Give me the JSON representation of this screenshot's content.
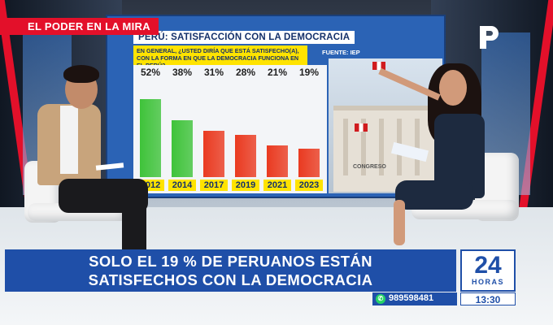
{
  "program_tag": "EL PODER EN LA MIRA",
  "screen": {
    "title": "PERÚ: SATISFACCIÓN CON LA DEMOCRACIA",
    "question": "EN GENERAL, ¿USTED DIRÍA QUE ESTÁ SATISFECHO(A), CON LA FORMA EN QUE LA DEMOCRACIA FUNCIONA EN EL PERÚ?",
    "source": "FUENTE: IEP",
    "building_label": "CONGRESO",
    "colors": {
      "green": "#3fc33a",
      "red": "#ea3a20",
      "year_bg": "#ffe300"
    }
  },
  "chart_data": {
    "type": "bar",
    "title": "PERÚ: SATISFACCIÓN CON LA DEMOCRACIA",
    "categories": [
      "2012",
      "2014",
      "2017",
      "2019",
      "2021",
      "2023"
    ],
    "values": [
      52,
      38,
      31,
      28,
      21,
      19
    ],
    "value_labels": [
      "52%",
      "38%",
      "31%",
      "28%",
      "21%",
      "19%"
    ],
    "bar_colors": [
      "#3fc33a",
      "#3fc33a",
      "#ea3a20",
      "#ea3a20",
      "#ea3a20",
      "#ea3a20"
    ],
    "ylim": [
      0,
      55
    ]
  },
  "lower_third": {
    "headline_line1": "SOLO EL 19 % DE PERUANOS ESTÁN",
    "headline_line2": "SATISFECHOS CON LA DEMOCRACIA",
    "brand_number": "24",
    "brand_sub": "HORAS",
    "phone": "989598481",
    "time": "13:30"
  },
  "icons": {
    "channel_logo": "panamericana-p-logo",
    "whatsapp": "whatsapp-icon"
  }
}
